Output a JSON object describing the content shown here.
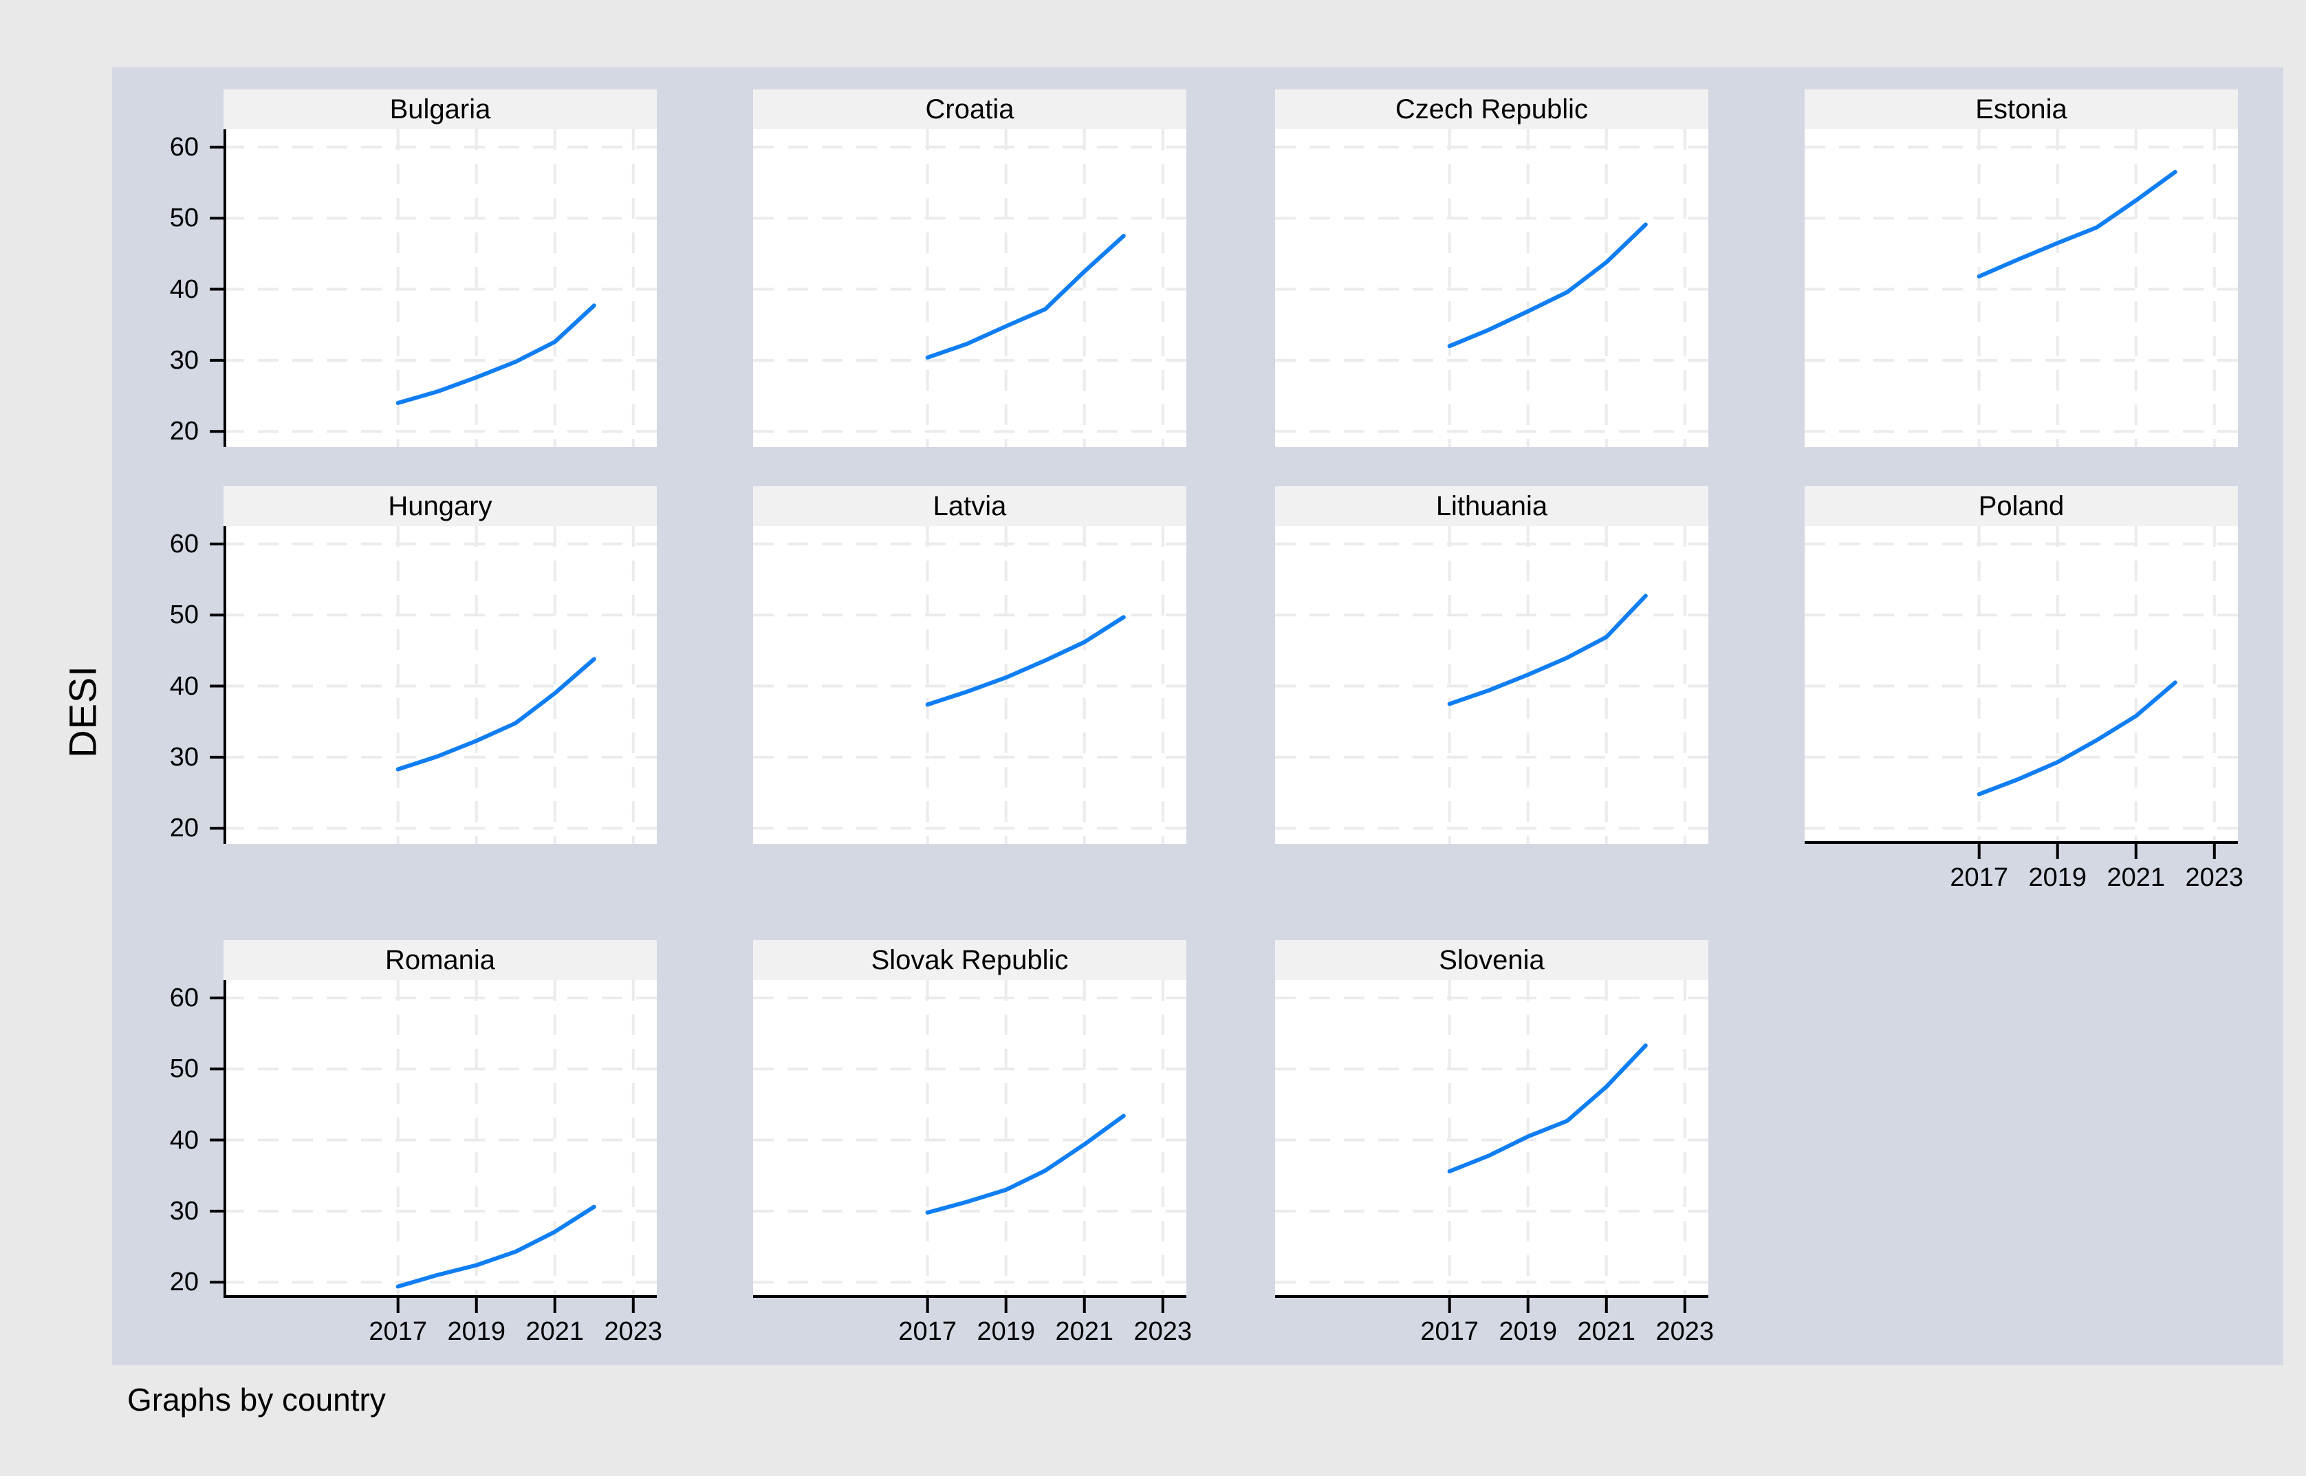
{
  "figure": {
    "y_axis_title": "DESI",
    "caption": "Graphs by country"
  },
  "colors": {
    "outer_background": "#e9e9e9",
    "inner_background": "#d3d8e3",
    "panel_background": "#ffffff",
    "panel_title_background": "#f1f1f1",
    "gridline": "#ebebeb",
    "axis": "#000000",
    "line": "#0f7ef2",
    "text": "#000000"
  },
  "chart_data": {
    "type": "line",
    "title": "",
    "xlabel": "",
    "ylabel": "DESI",
    "caption": "Graphs by country",
    "grid": true,
    "legend": false,
    "x": [
      2017,
      2018,
      2019,
      2020,
      2021,
      2022
    ],
    "x_range": [
      2012.55,
      2023.6
    ],
    "y_range": [
      17.8,
      62.5
    ],
    "x_ticks": [
      2017,
      2019,
      2021,
      2023
    ],
    "y_ticks": [
      20,
      30,
      40,
      50,
      60
    ],
    "x_tick_labels": [
      "2017",
      "2019",
      "2021",
      "2023"
    ],
    "y_tick_labels": [
      "20",
      "30",
      "40",
      "50",
      "60"
    ],
    "panels": [
      {
        "name": "Bulgaria",
        "values": [
          24.0,
          25.6,
          27.6,
          29.8,
          32.6,
          37.7
        ]
      },
      {
        "name": "Croatia",
        "values": [
          30.4,
          32.3,
          34.8,
          37.2,
          42.5,
          47.5
        ]
      },
      {
        "name": "Czech Republic",
        "values": [
          32.0,
          34.3,
          36.9,
          39.6,
          43.8,
          49.1
        ]
      },
      {
        "name": "Estonia",
        "values": [
          41.8,
          44.2,
          46.5,
          48.7,
          52.5,
          56.5
        ]
      },
      {
        "name": "Hungary",
        "values": [
          28.3,
          30.1,
          32.3,
          34.8,
          39.0,
          43.8
        ]
      },
      {
        "name": "Latvia",
        "values": [
          37.4,
          39.2,
          41.2,
          43.6,
          46.2,
          49.7
        ]
      },
      {
        "name": "Lithuania",
        "values": [
          37.5,
          39.4,
          41.6,
          44.0,
          46.9,
          52.7
        ]
      },
      {
        "name": "Poland",
        "values": [
          24.8,
          26.9,
          29.3,
          32.4,
          35.8,
          40.5
        ]
      },
      {
        "name": "Romania",
        "values": [
          19.4,
          21.0,
          22.4,
          24.3,
          27.1,
          30.6
        ]
      },
      {
        "name": "Slovak Republic",
        "values": [
          29.8,
          31.3,
          33.0,
          35.7,
          39.4,
          43.4
        ]
      },
      {
        "name": "Slovenia",
        "values": [
          35.6,
          37.8,
          40.5,
          42.7,
          47.5,
          53.3
        ]
      }
    ]
  }
}
